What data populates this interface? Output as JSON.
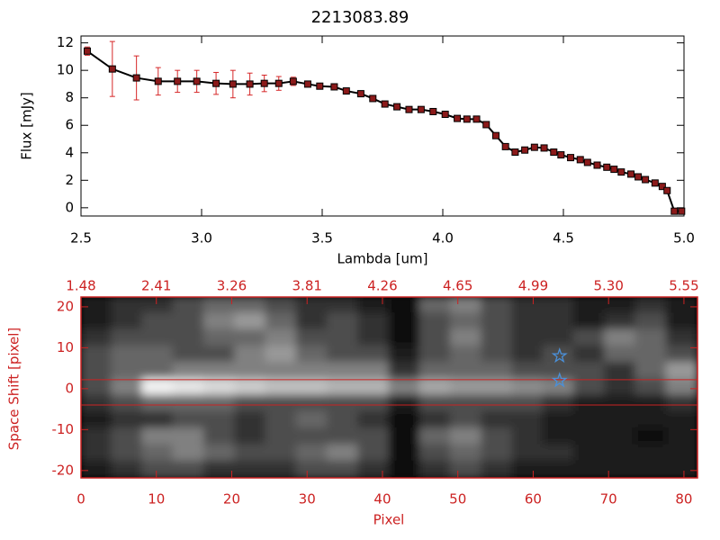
{
  "chart_data": [
    {
      "type": "line",
      "title": "2213083.89",
      "xlabel": "Lambda [um]",
      "ylabel": "Flux [mJy]",
      "x": [
        2.526,
        2.63,
        2.73,
        2.82,
        2.9,
        2.98,
        3.06,
        3.13,
        3.2,
        3.26,
        3.32,
        3.38,
        3.44,
        3.49,
        3.55,
        3.6,
        3.66,
        3.71,
        3.76,
        3.81,
        3.86,
        3.91,
        3.96,
        4.01,
        4.06,
        4.1,
        4.14,
        4.18,
        4.22,
        4.26,
        4.3,
        4.34,
        4.38,
        4.42,
        4.46,
        4.49,
        4.53,
        4.57,
        4.6,
        4.64,
        4.68,
        4.71,
        4.74,
        4.78,
        4.81,
        4.84,
        4.88,
        4.91,
        4.93,
        4.96,
        4.99
      ],
      "values": [
        11.4,
        10.1,
        9.45,
        9.2,
        9.2,
        9.2,
        9.05,
        9.0,
        9.0,
        9.05,
        9.05,
        9.2,
        9.0,
        8.85,
        8.8,
        8.5,
        8.3,
        7.95,
        7.55,
        7.35,
        7.15,
        7.15,
        7.0,
        6.8,
        6.5,
        6.45,
        6.45,
        6.05,
        5.25,
        4.45,
        4.05,
        4.2,
        4.4,
        4.35,
        4.05,
        3.85,
        3.65,
        3.5,
        3.3,
        3.1,
        2.95,
        2.8,
        2.6,
        2.45,
        2.25,
        2.05,
        1.8,
        1.55,
        1.25,
        -0.25,
        -0.25
      ],
      "errors": [
        0.3,
        2.0,
        1.6,
        1.0,
        0.8,
        0.8,
        0.8,
        1.0,
        0.8,
        0.6,
        0.5,
        0.3,
        0.2,
        0.2,
        0.2,
        0.2,
        0.2,
        0.2,
        0.2,
        0.2,
        0.2,
        0.2,
        0.2,
        0.2,
        0.2,
        0.2,
        0.2,
        0.2,
        0.2,
        0.2,
        0.2,
        0.2,
        0.2,
        0.2,
        0.2,
        0.2,
        0.2,
        0.2,
        0.2,
        0.2,
        0.2,
        0.2,
        0.2,
        0.2,
        0.2,
        0.2,
        0.2,
        0.2,
        0.2,
        0.2,
        0.2
      ],
      "color": "#000000",
      "marker_color": "#8b1a1a",
      "error_color": "#d62728",
      "xlim": [
        2.5,
        5.0
      ],
      "ylim": [
        -0.6,
        12.5
      ],
      "xticks": [
        2.5,
        {
          "value": 3,
          "label": "3.0"
        },
        3.5,
        {
          "value": 4,
          "label": "4.0"
        },
        4.5,
        {
          "value": 5,
          "label": "5.0"
        }
      ],
      "yticks": [
        0,
        2,
        4,
        6,
        8,
        10,
        12
      ]
    },
    {
      "type": "heatmap",
      "xlabel": "Pixel",
      "ylabel": "Space Shift [pixel]",
      "axis_color": "#cc2222",
      "xlim": [
        0,
        81.8
      ],
      "ylim": [
        -21.8,
        22.4
      ],
      "zlim": [
        0,
        1
      ],
      "xticks": [
        0,
        10,
        20,
        30,
        40,
        50,
        60,
        70,
        80
      ],
      "yticks": [
        -20,
        -10,
        0,
        10,
        20
      ],
      "x2ticks": [
        {
          "value": 0,
          "label": "1.48"
        },
        {
          "value": 10,
          "label": "2.41"
        },
        {
          "value": 20,
          "label": "3.26"
        },
        {
          "value": 30,
          "label": "3.81"
        },
        {
          "value": 40,
          "label": "4.26"
        },
        {
          "value": 50,
          "label": "4.65"
        },
        {
          "value": 60,
          "label": "4.99"
        },
        {
          "value": 70,
          "label": "5.30"
        },
        {
          "value": 80,
          "label": "5.55"
        }
      ],
      "hlines": [
        2.2,
        -4.0
      ],
      "stars": {
        "x": [
          63.5,
          63.5
        ],
        "y": [
          8,
          2
        ]
      },
      "star_color": "#4a90d9",
      "z": [
        [
          0.1,
          0.2,
          0.2,
          0.3,
          0.4,
          0.4,
          0.3,
          0.2,
          0.2,
          0.1,
          0.05,
          0.4,
          0.5,
          0.3,
          0.2,
          0.2,
          0.1,
          0.1,
          0.2,
          0.1
        ],
        [
          0.1,
          0.2,
          0.3,
          0.3,
          0.5,
          0.6,
          0.4,
          0.2,
          0.3,
          0.2,
          0.05,
          0.3,
          0.4,
          0.3,
          0.2,
          0.2,
          0.1,
          0.2,
          0.3,
          0.1
        ],
        [
          0.2,
          0.3,
          0.3,
          0.3,
          0.4,
          0.4,
          0.5,
          0.3,
          0.3,
          0.2,
          0.05,
          0.3,
          0.5,
          0.3,
          0.2,
          0.2,
          0.3,
          0.5,
          0.4,
          0.2
        ],
        [
          0.3,
          0.4,
          0.4,
          0.3,
          0.3,
          0.5,
          0.6,
          0.4,
          0.3,
          0.3,
          0.1,
          0.3,
          0.4,
          0.3,
          0.2,
          0.3,
          0.2,
          0.4,
          0.4,
          0.3
        ],
        [
          0.3,
          0.4,
          0.4,
          0.5,
          0.5,
          0.5,
          0.5,
          0.5,
          0.5,
          0.5,
          0.2,
          0.4,
          0.4,
          0.4,
          0.3,
          0.3,
          0.3,
          0.2,
          0.4,
          0.6
        ],
        [
          0.3,
          0.5,
          0.95,
          0.9,
          0.85,
          0.8,
          0.75,
          0.75,
          0.7,
          0.7,
          0.5,
          0.65,
          0.6,
          0.6,
          0.55,
          0.5,
          0.3,
          0.2,
          0.3,
          0.5
        ],
        [
          0.2,
          0.3,
          0.4,
          0.4,
          0.4,
          0.3,
          0.3,
          0.3,
          0.3,
          0.3,
          0.1,
          0.3,
          0.3,
          0.3,
          0.3,
          0.2,
          0.1,
          0.1,
          0.1,
          0.2
        ],
        [
          0.1,
          0.2,
          0.2,
          0.3,
          0.3,
          0.2,
          0.3,
          0.4,
          0.3,
          0.2,
          0.05,
          0.2,
          0.3,
          0.2,
          0.2,
          0.1,
          0.1,
          0.1,
          0.1,
          0.1
        ],
        [
          0.2,
          0.3,
          0.5,
          0.5,
          0.3,
          0.2,
          0.3,
          0.3,
          0.3,
          0.3,
          0.05,
          0.4,
          0.5,
          0.3,
          0.2,
          0.1,
          0.1,
          0.1,
          0.05,
          0.1
        ],
        [
          0.2,
          0.3,
          0.4,
          0.5,
          0.4,
          0.3,
          0.3,
          0.4,
          0.5,
          0.3,
          0.05,
          0.3,
          0.4,
          0.3,
          0.2,
          0.2,
          0.1,
          0.1,
          0.1,
          0.1
        ],
        [
          0.1,
          0.2,
          0.3,
          0.3,
          0.2,
          0.2,
          0.2,
          0.3,
          0.3,
          0.2,
          0.05,
          0.2,
          0.3,
          0.2,
          0.1,
          0.1,
          0.1,
          0.1,
          0.1,
          0.1
        ]
      ]
    }
  ]
}
